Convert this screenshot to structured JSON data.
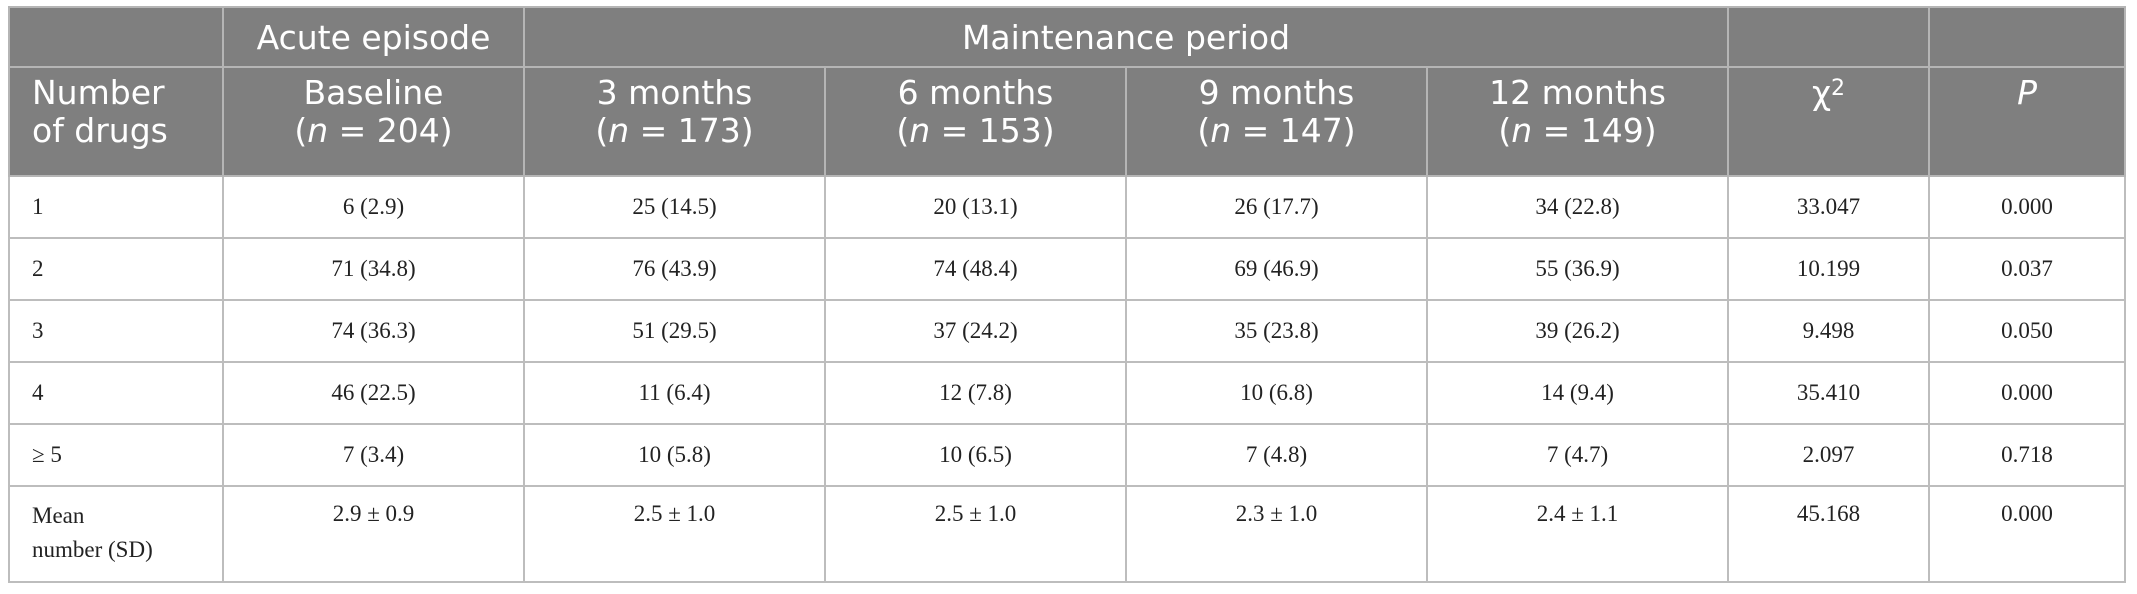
{
  "header": {
    "group_acute": "Acute episode",
    "group_maintenance": "Maintenance period",
    "col_number": [
      "Number",
      "of drugs"
    ],
    "columns": [
      {
        "label": "Baseline",
        "n": "204"
      },
      {
        "label": "3 months",
        "n": "173"
      },
      {
        "label": "6 months",
        "n": "153"
      },
      {
        "label": "9 months",
        "n": "147"
      },
      {
        "label": "12 months",
        "n": "149"
      }
    ],
    "chi_symbol": "χ",
    "chi_sup": "2",
    "p_label": "P",
    "n_prefix": "n",
    "n_eq": " = "
  },
  "rows": [
    {
      "label": "1",
      "cells": [
        "6 (2.9)",
        "25 (14.5)",
        "20 (13.1)",
        "26 (17.7)",
        "34 (22.8)",
        "33.047",
        "0.000"
      ]
    },
    {
      "label": "2",
      "cells": [
        "71 (34.8)",
        "76 (43.9)",
        "74 (48.4)",
        "69 (46.9)",
        "55 (36.9)",
        "10.199",
        "0.037"
      ]
    },
    {
      "label": "3",
      "cells": [
        "74 (36.3)",
        "51 (29.5)",
        "37 (24.2)",
        "35 (23.8)",
        "39 (26.2)",
        "9.498",
        "0.050"
      ]
    },
    {
      "label": "4",
      "cells": [
        "46 (22.5)",
        "11 (6.4)",
        "12 (7.8)",
        "10 (6.8)",
        "14 (9.4)",
        "35.410",
        "0.000"
      ]
    },
    {
      "label": "≥ 5",
      "cells": [
        "7 (3.4)",
        "10 (5.8)",
        "10 (6.5)",
        "7 (4.8)",
        "7 (4.7)",
        "2.097",
        "0.718"
      ]
    },
    {
      "label_lines": [
        "Mean",
        "number (SD)"
      ],
      "cells": [
        "2.9 ± 0.9",
        "2.5 ± 1.0",
        "2.5 ± 1.0",
        "2.3 ± 1.0",
        "2.4 ± 1.1",
        "45.168",
        "0.000"
      ]
    }
  ]
}
